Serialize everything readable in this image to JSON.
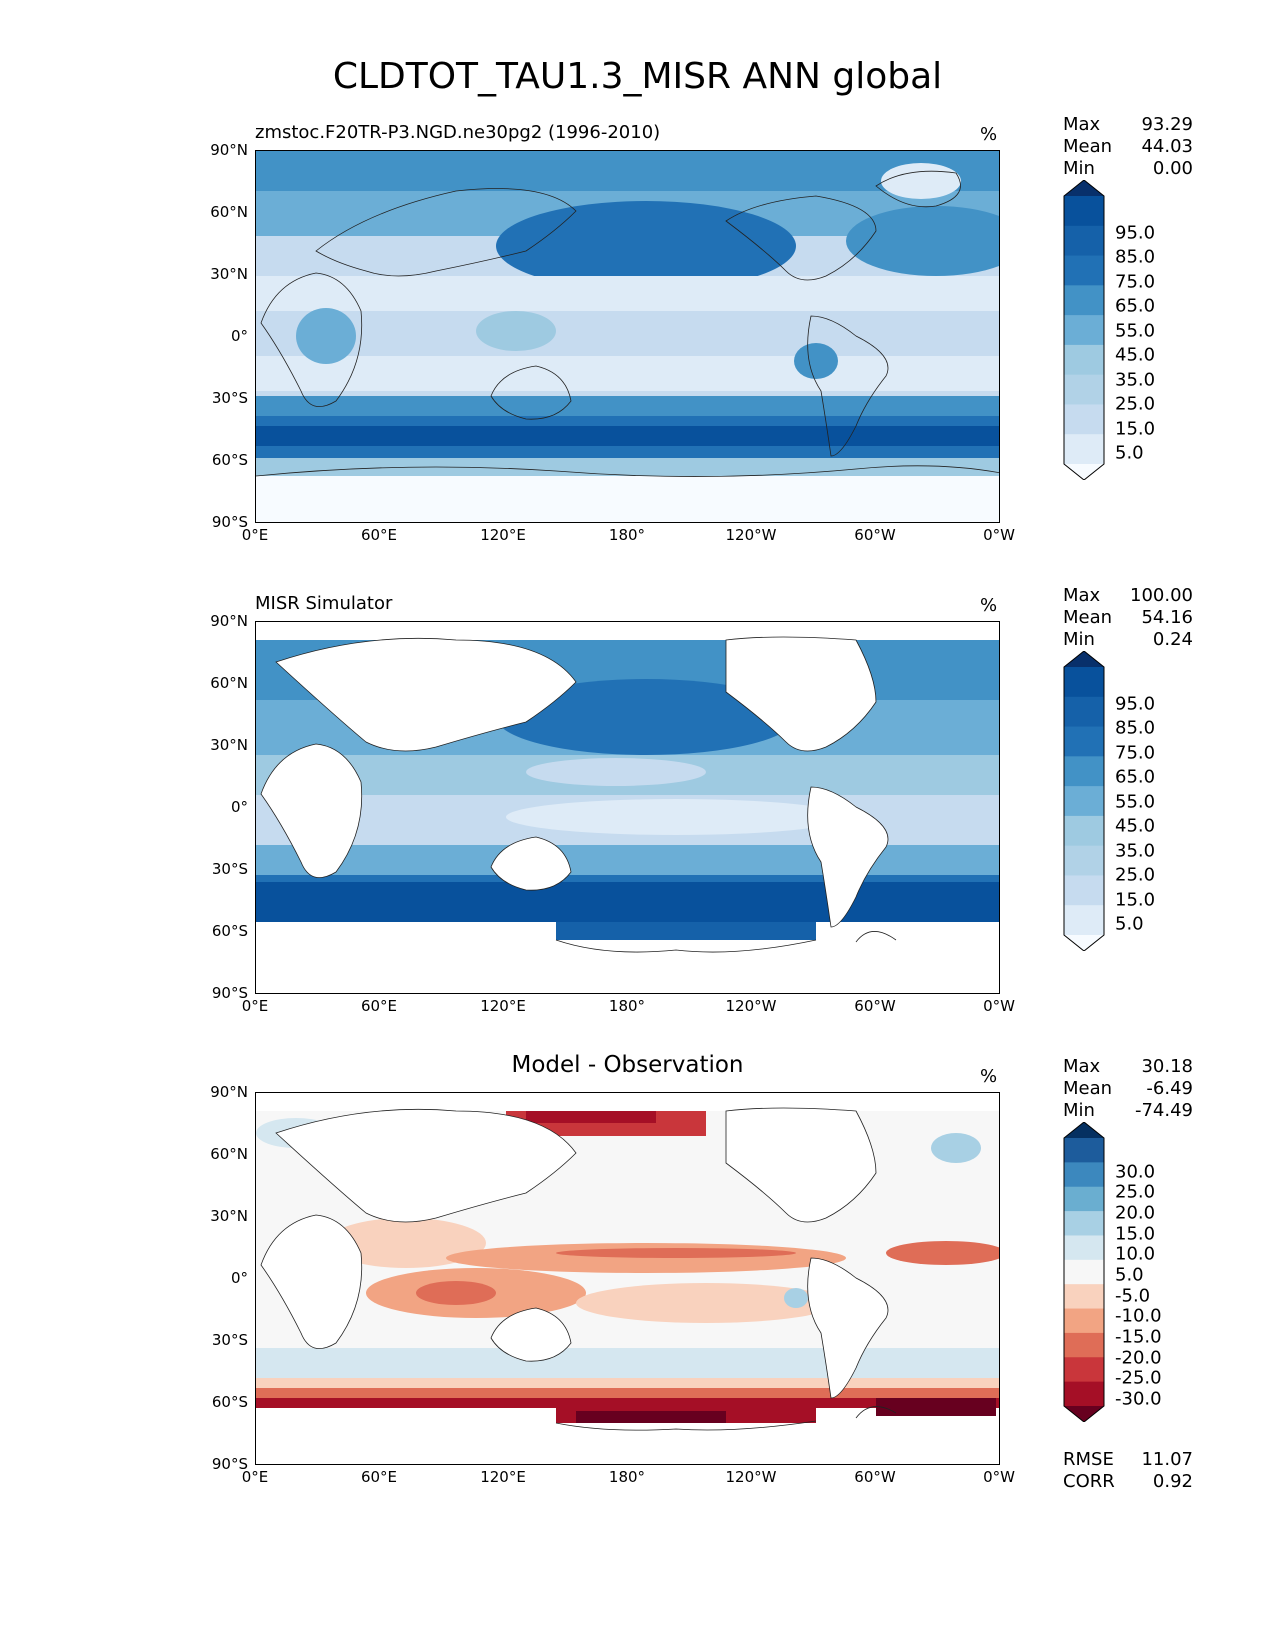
{
  "title": "CLDTOT_TAU1.3_MISR ANN global",
  "y_ticks": [
    "90°N",
    "60°N",
    "30°N",
    "0°",
    "30°S",
    "60°S",
    "90°S"
  ],
  "x_ticks": [
    "0°E",
    "60°E",
    "120°E",
    "180°",
    "120°W",
    "60°W",
    "0°W"
  ],
  "seq_colors": [
    "#f7fbff",
    "#deebf7",
    "#c6dbef",
    "#b1d2e7",
    "#9ecae1",
    "#6baed6",
    "#4292c6",
    "#2171b5",
    "#1561a9",
    "#08519c",
    "#08306b"
  ],
  "div_colors": [
    "#67001f",
    "#a50f26",
    "#c9363b",
    "#df6d57",
    "#f2a483",
    "#f9d2be",
    "#f7f7f7",
    "#d5e7f0",
    "#a8d0e4",
    "#6aaed0",
    "#3c88be",
    "#1d5c9c",
    "#053061"
  ],
  "panels": [
    {
      "key": "test",
      "title": "zmstoc.F20TR-P3.NGD.ne30pg2 (1996-2010)",
      "unit": "%",
      "stats": [
        {
          "label": "Max",
          "value": "93.29"
        },
        {
          "label": "Mean",
          "value": "44.03"
        },
        {
          "label": "Min",
          "value": "0.00"
        }
      ],
      "colorbar_labels": [
        "95.0",
        "85.0",
        "75.0",
        "65.0",
        "55.0",
        "45.0",
        "35.0",
        "25.0",
        "15.0",
        "5.0"
      ]
    },
    {
      "key": "ref",
      "title": "MISR Simulator",
      "unit": "%",
      "stats": [
        {
          "label": "Max",
          "value": "100.00"
        },
        {
          "label": "Mean",
          "value": "54.16"
        },
        {
          "label": "Min",
          "value": "0.24"
        }
      ],
      "colorbar_labels": [
        "95.0",
        "85.0",
        "75.0",
        "65.0",
        "55.0",
        "45.0",
        "35.0",
        "25.0",
        "15.0",
        "5.0"
      ]
    },
    {
      "key": "diff",
      "title": "Model - Observation",
      "unit": "%",
      "stats": [
        {
          "label": "Max",
          "value": "30.18"
        },
        {
          "label": "Mean",
          "value": "-6.49"
        },
        {
          "label": "Min",
          "value": "-74.49"
        }
      ],
      "colorbar_labels": [
        "30.0",
        "25.0",
        "20.0",
        "15.0",
        "10.0",
        "5.0",
        "-5.0",
        "-10.0",
        "-15.0",
        "-20.0",
        "-25.0",
        "-30.0"
      ],
      "metrics": [
        {
          "label": "RMSE",
          "value": "11.07"
        },
        {
          "label": "CORR",
          "value": "0.92"
        }
      ]
    }
  ]
}
